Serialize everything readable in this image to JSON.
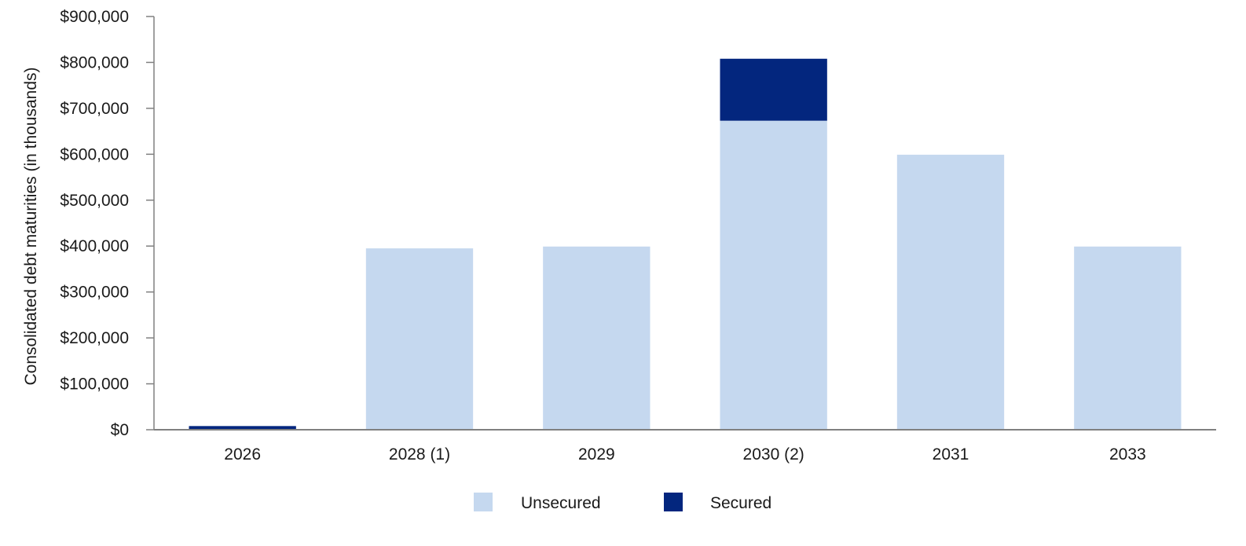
{
  "chart_data": {
    "type": "bar",
    "stacked": true,
    "categories": [
      "2026",
      "2028 (1)",
      "2029",
      "2030 (2)",
      "2031",
      "2033"
    ],
    "series": [
      {
        "name": "Unsecured",
        "color": "#c5d8ef",
        "values": [
          0,
          395000,
          399000,
          673000,
          599000,
          399000
        ]
      },
      {
        "name": "Secured",
        "color": "#03267e",
        "values": [
          8000,
          0,
          0,
          135000,
          0,
          0
        ]
      }
    ],
    "ylabel": "Consolidated debt maturities (in thousands)",
    "xlabel": "",
    "ylim": [
      0,
      900000
    ],
    "yticks": [
      "$0",
      "$100,000",
      "$200,000",
      "$300,000",
      "$400,000",
      "$500,000",
      "$600,000",
      "$700,000",
      "$800,000",
      "$900,000"
    ],
    "legend_position": "bottom-center",
    "grid": false
  }
}
